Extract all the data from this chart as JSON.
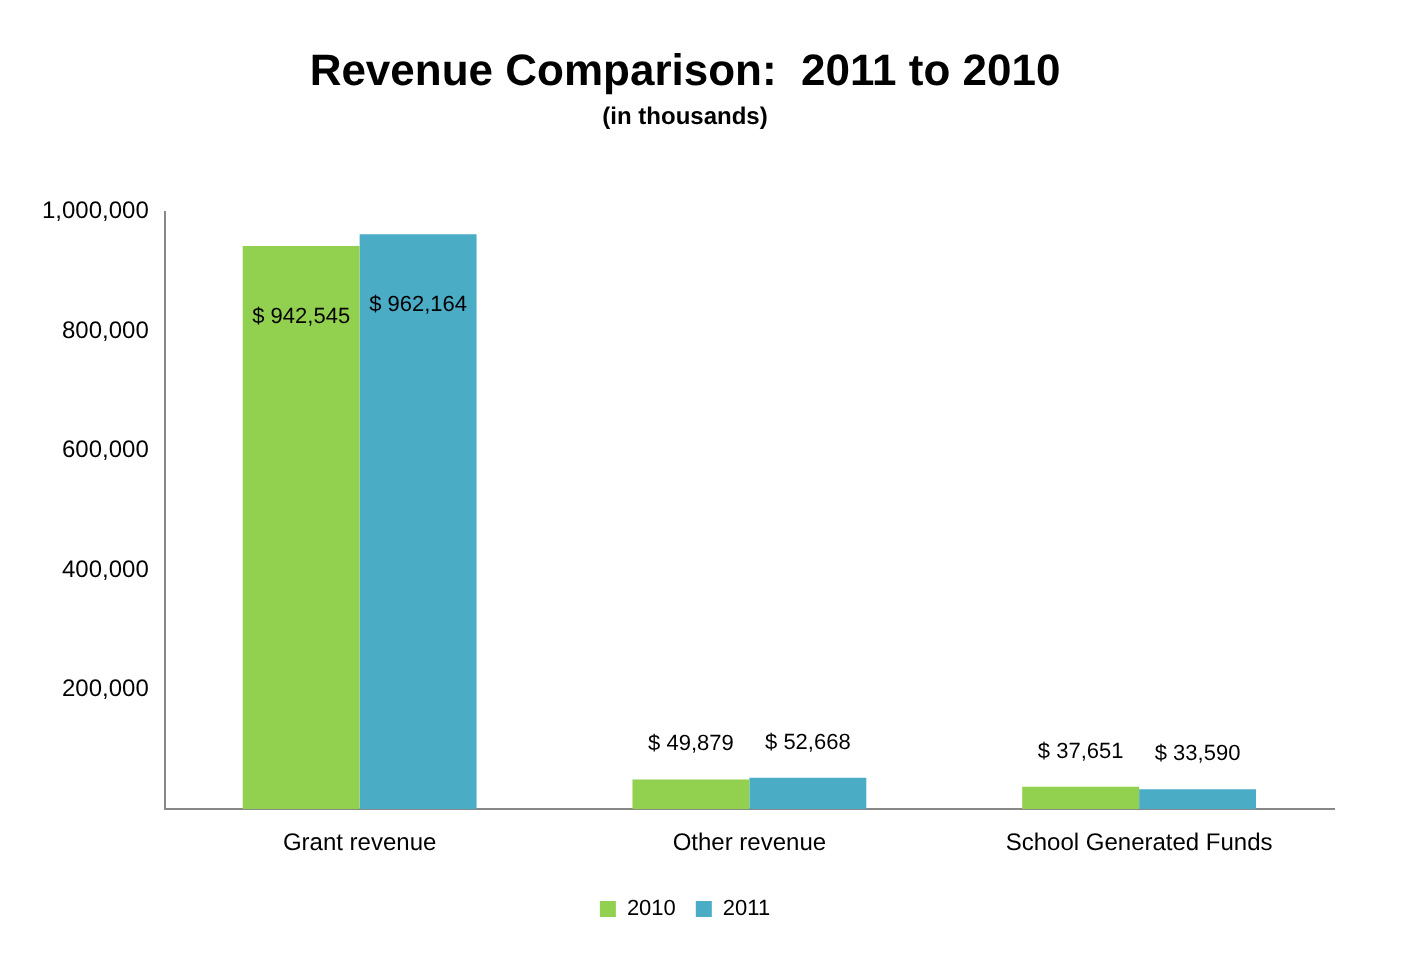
{
  "chart_data": {
    "type": "bar",
    "title": "Revenue Comparison:  2011 to 2010",
    "subtitle": "(in thousands)",
    "categories": [
      "Grant revenue",
      "Other revenue",
      "School Generated Funds"
    ],
    "series": [
      {
        "name": "2010",
        "color": "#92d050",
        "values": [
          942545,
          49879,
          37651
        ],
        "value_labels": [
          "$ 942,545",
          "$ 49,879",
          "$ 37,651"
        ]
      },
      {
        "name": "2011",
        "color": "#4bacc6",
        "values": [
          962164,
          52668,
          33590
        ],
        "value_labels": [
          "$ 962,164",
          "$ 52,668",
          "$ 33,590"
        ]
      }
    ],
    "ylim": [
      0,
      1000000
    ],
    "yticks": [
      {
        "value": 200000,
        "label": "200,000"
      },
      {
        "value": 400000,
        "label": "400,000"
      },
      {
        "value": 600000,
        "label": "600,000"
      },
      {
        "value": 800000,
        "label": "800,000"
      },
      {
        "value": 1000000,
        "label": "1,000,000"
      }
    ],
    "grid": false,
    "legend": "bottom"
  }
}
